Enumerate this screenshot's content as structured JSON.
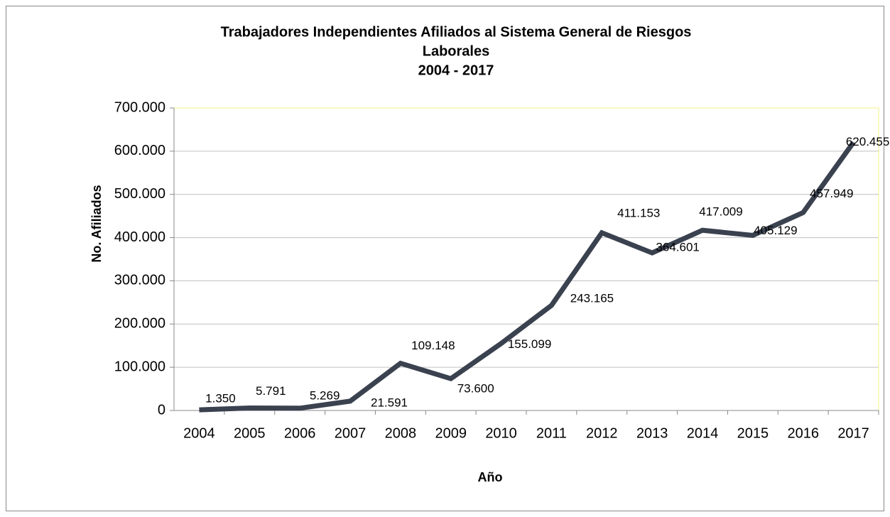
{
  "chart_data": {
    "type": "line",
    "title": [
      "Trabajadores Independientes Afiliados al Sistema General de Riesgos",
      "Laborales",
      "2004 - 2017"
    ],
    "x_label": "Año",
    "y_label": "No. Afiliados",
    "categories": [
      "2004",
      "2005",
      "2006",
      "2007",
      "2008",
      "2009",
      "2010",
      "2011",
      "2012",
      "2013",
      "2014",
      "2015",
      "2016",
      "2017"
    ],
    "series": [
      {
        "name": "No. Afiliados",
        "color": "#3a414f",
        "values": [
          1350,
          5791,
          5269,
          21591,
          109148,
          73600,
          155099,
          243165,
          411153,
          364601,
          417009,
          405129,
          457949,
          620455
        ],
        "value_labels": [
          "1.350",
          "5.791",
          "5.269",
          "21.591",
          "109.148",
          "73.600",
          "155.099",
          "243.165",
          "411.153",
          "364.601",
          "417.009",
          "405.129",
          "457.949",
          "620.455"
        ]
      }
    ],
    "ylim": [
      0,
      700000
    ],
    "yticks": [
      0,
      {
        "value": 100000,
        "label": "100.000"
      },
      {
        "value": 200000,
        "label": "200.000"
      },
      {
        "value": 300000,
        "label": "300.000"
      },
      {
        "value": 400000,
        "label": "400.000"
      },
      {
        "value": 500000,
        "label": "500.000"
      },
      {
        "value": 600000,
        "label": "600.000"
      },
      {
        "value": 700000,
        "label": "700.000"
      }
    ],
    "grid": true
  }
}
